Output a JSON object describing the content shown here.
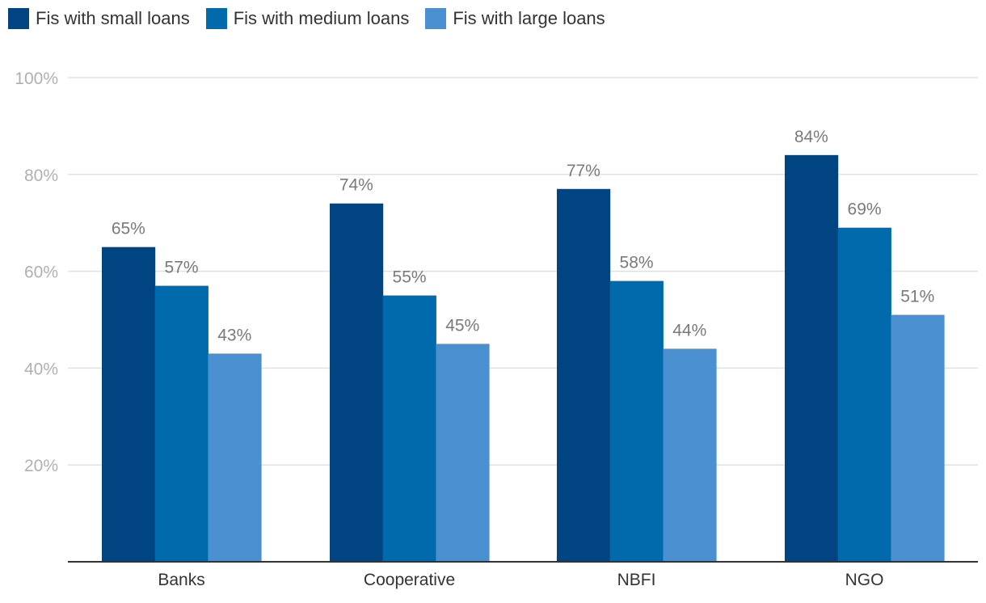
{
  "chart_data": {
    "type": "bar",
    "categories": [
      "Banks",
      "Cooperative",
      "NBFI",
      "NGO"
    ],
    "series": [
      {
        "name": "Fis with small loans",
        "values": [
          65,
          74,
          77,
          84
        ],
        "color": "#004481"
      },
      {
        "name": "Fis with medium loans",
        "values": [
          57,
          55,
          58,
          69
        ],
        "color": "#006aac"
      },
      {
        "name": "Fis with large loans",
        "values": [
          43,
          45,
          44,
          51
        ],
        "color": "#4a90d0"
      }
    ],
    "data_labels": [
      [
        "65%",
        "74%",
        "77%",
        "84%"
      ],
      [
        "57%",
        "55%",
        "58%",
        "69%"
      ],
      [
        "43%",
        "45%",
        "44%",
        "51%"
      ]
    ],
    "y_ticks": [
      {
        "value": 20,
        "label": "20%"
      },
      {
        "value": 40,
        "label": "40%"
      },
      {
        "value": 60,
        "label": "60%"
      },
      {
        "value": 80,
        "label": "80%"
      },
      {
        "value": 100,
        "label": "100%"
      }
    ],
    "ylim": [
      0,
      100
    ],
    "grid": true,
    "legend_position": "top-left",
    "gridline_color": "#e0e0e0",
    "axis_color": "#333333"
  }
}
